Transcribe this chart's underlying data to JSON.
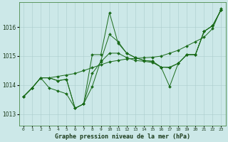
{
  "title": "Graphe pression niveau de la mer (hPa)",
  "bg_color": "#cce8e8",
  "grid_color": "#aacccc",
  "line_color": "#1a6b1a",
  "ylim": [
    1012.6,
    1016.85
  ],
  "yticks": [
    1013,
    1014,
    1015,
    1016
  ],
  "x_labels": [
    "0",
    "1",
    "2",
    "3",
    "4",
    "5",
    "6",
    "7",
    "8",
    "9",
    "10",
    "11",
    "12",
    "13",
    "14",
    "15",
    "16",
    "17",
    "18",
    "19",
    "20",
    "21",
    "22",
    "23"
  ],
  "series": [
    [
      1013.6,
      1013.9,
      1014.25,
      1014.25,
      1014.3,
      1014.35,
      1014.4,
      1014.5,
      1014.6,
      1014.7,
      1014.8,
      1014.85,
      1014.9,
      1014.92,
      1014.94,
      1014.96,
      1015.0,
      1015.1,
      1015.2,
      1015.35,
      1015.5,
      1015.65,
      1015.95,
      1016.65
    ],
    [
      1013.6,
      1013.9,
      1014.25,
      1013.9,
      1013.8,
      1013.7,
      1013.2,
      1013.35,
      1013.95,
      1014.85,
      1015.75,
      1015.5,
      1015.1,
      1014.95,
      1014.85,
      1014.82,
      1014.62,
      1013.95,
      1014.75,
      1015.05,
      1015.05,
      1015.85,
      1016.05,
      1016.6
    ],
    [
      1013.6,
      1013.9,
      1014.25,
      1014.25,
      1014.15,
      1014.2,
      1013.2,
      1013.35,
      1015.05,
      1015.05,
      1016.5,
      1015.45,
      1015.1,
      1014.95,
      1014.85,
      1014.82,
      1014.62,
      1014.6,
      1014.75,
      1015.05,
      1015.05,
      1015.85,
      1016.05,
      1016.6
    ],
    [
      1013.6,
      1013.9,
      1014.25,
      1014.25,
      1014.15,
      1014.2,
      1013.2,
      1013.35,
      1014.4,
      1014.8,
      1015.1,
      1015.1,
      1014.95,
      1014.85,
      1014.82,
      1014.78,
      1014.62,
      1014.62,
      1014.75,
      1015.05,
      1015.05,
      1015.85,
      1016.05,
      1016.6
    ]
  ]
}
